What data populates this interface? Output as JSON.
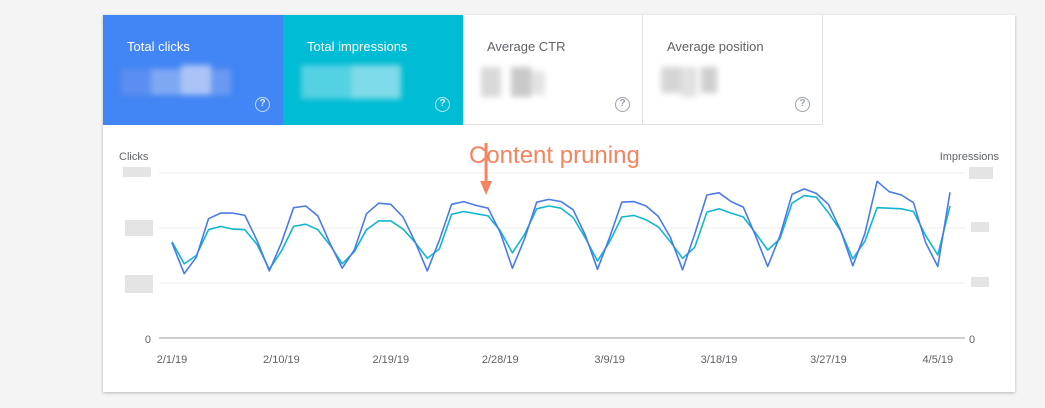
{
  "metrics": [
    {
      "label": "Total clicks"
    },
    {
      "label": "Total impressions"
    },
    {
      "label": "Average CTR"
    },
    {
      "label": "Average position"
    }
  ],
  "help_icon": "?",
  "colors": {
    "clicks": "#4a7be8",
    "impressions": "#13b6cf",
    "annotation": "#f4845f"
  },
  "chart_data": {
    "type": "line",
    "x_labels": [
      "2/1/19",
      "2/10/19",
      "2/19/19",
      "2/28/19",
      "3/9/19",
      "3/18/19",
      "3/27/19",
      "4/5/19"
    ],
    "ylabel_left": "Clicks",
    "ylabel_right": "Impressions",
    "y_zero_label_left": "0",
    "y_zero_label_right": "0",
    "ylim": [
      0,
      3
    ],
    "series": [
      {
        "name": "Clicks",
        "values": [
          1.73,
          1.17,
          1.47,
          2.17,
          2.27,
          2.27,
          2.23,
          1.77,
          1.22,
          1.73,
          2.37,
          2.4,
          2.22,
          1.72,
          1.27,
          1.6,
          2.26,
          2.45,
          2.43,
          2.2,
          1.75,
          1.22,
          1.78,
          2.43,
          2.48,
          2.41,
          2.36,
          1.92,
          1.27,
          1.8,
          2.47,
          2.52,
          2.48,
          2.33,
          1.87,
          1.25,
          1.83,
          2.47,
          2.48,
          2.4,
          2.21,
          1.83,
          1.24,
          1.89,
          2.6,
          2.64,
          2.48,
          2.38,
          1.86,
          1.3,
          1.85,
          2.61,
          2.71,
          2.63,
          2.43,
          1.96,
          1.31,
          1.9,
          2.85,
          2.66,
          2.6,
          2.46,
          1.73,
          1.3,
          2.65
        ]
      },
      {
        "name": "Impressions",
        "values": [
          1.75,
          1.35,
          1.5,
          1.97,
          2.03,
          1.98,
          1.97,
          1.7,
          1.25,
          1.58,
          2.03,
          2.07,
          1.97,
          1.69,
          1.35,
          1.57,
          1.97,
          2.13,
          2.13,
          1.98,
          1.74,
          1.45,
          1.62,
          2.25,
          2.3,
          2.26,
          2.22,
          1.95,
          1.55,
          1.88,
          2.35,
          2.4,
          2.36,
          2.19,
          1.82,
          1.4,
          1.75,
          2.2,
          2.23,
          2.15,
          2.02,
          1.75,
          1.45,
          1.65,
          2.29,
          2.35,
          2.27,
          2.2,
          1.91,
          1.6,
          1.8,
          2.45,
          2.59,
          2.56,
          2.28,
          1.95,
          1.44,
          1.76,
          2.37,
          2.36,
          2.35,
          2.3,
          1.86,
          1.51,
          2.4
        ]
      }
    ],
    "annotation": {
      "text": "Content pruning",
      "x_index": 26
    }
  }
}
